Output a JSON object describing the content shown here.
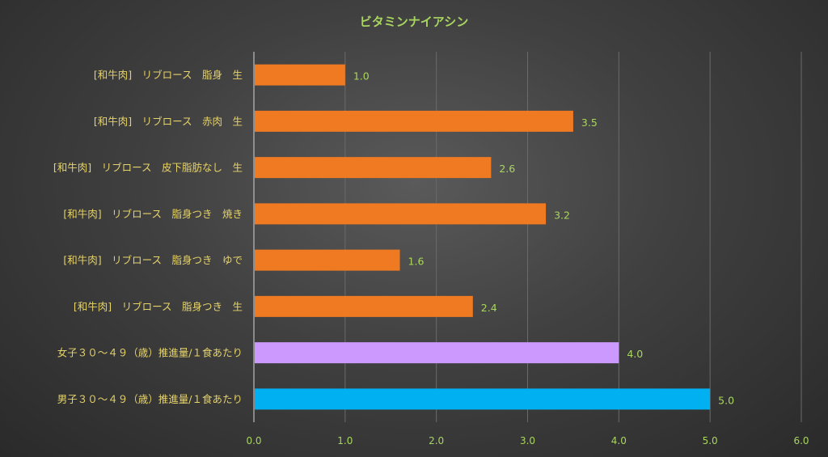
{
  "chart_data": {
    "type": "bar",
    "orientation": "horizontal",
    "title": "ビタミンナイアシン",
    "categories": [
      "[和牛肉]　リブロース　脂身　生",
      "[和牛肉]　リブロース　赤肉　生",
      "[和牛肉]　リブロース　皮下脂肪なし　生",
      "[和牛肉]　リブロース　脂身つき　焼き",
      "[和牛肉]　リブロース　脂身つき　ゆで",
      "[和牛肉]　リブロース　脂身つき　生",
      "女子３０～４９（歳）推進量/１食あたり",
      "男子３０～４９（歳）推進量/１食あたり"
    ],
    "values": [
      1.0,
      3.5,
      2.6,
      3.2,
      1.6,
      2.4,
      4.0,
      5.0
    ],
    "value_labels": [
      "1.0",
      "3.5",
      "2.6",
      "3.2",
      "1.6",
      "2.4",
      "4.0",
      "5.0"
    ],
    "bar_colors": [
      "#f07a22",
      "#f07a22",
      "#f07a22",
      "#f07a22",
      "#f07a22",
      "#f07a22",
      "#cc99ff",
      "#00b0f0"
    ],
    "xlim": [
      0,
      6
    ],
    "xticks": [
      "0.0",
      "1.0",
      "2.0",
      "3.0",
      "4.0",
      "5.0",
      "6.0"
    ],
    "grid": true,
    "xlabel": "",
    "ylabel": ""
  }
}
